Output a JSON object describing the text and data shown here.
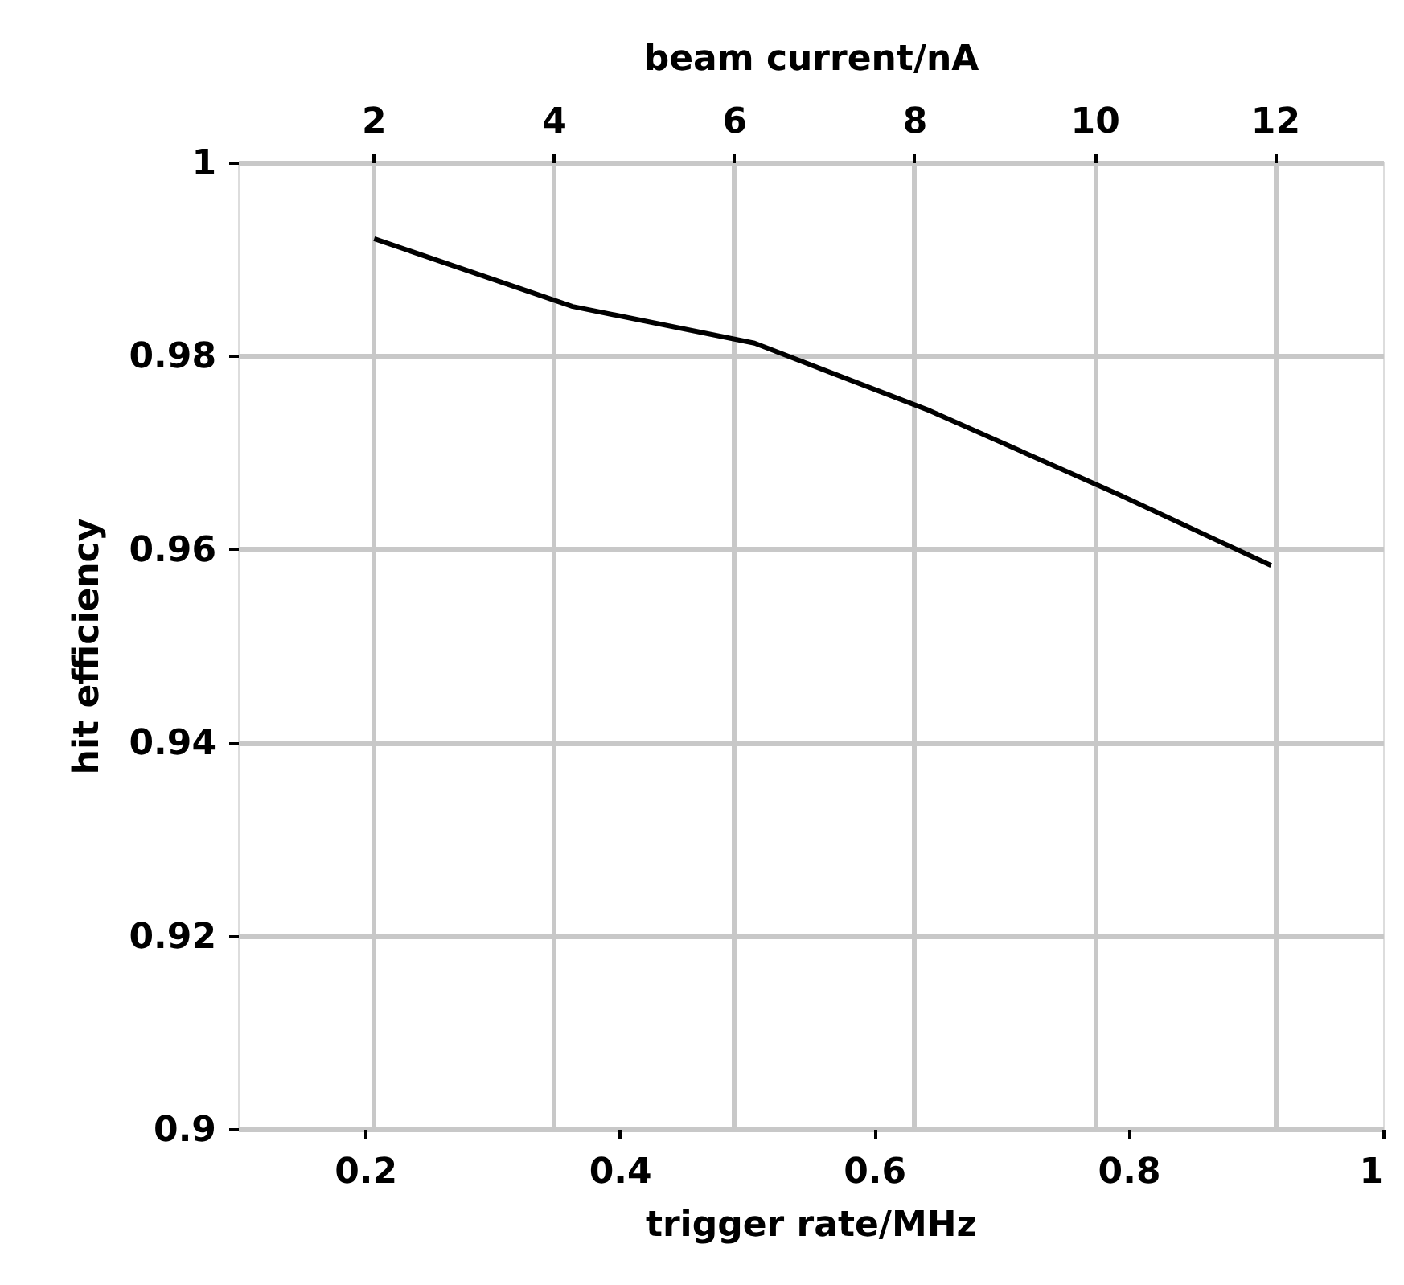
{
  "chart_data": {
    "type": "line",
    "xlabel": "trigger rate/MHz",
    "ylabel": "hit efficiency",
    "x2label": "beam current/nA",
    "x": [
      0.207,
      0.363,
      0.506,
      0.644,
      0.793,
      0.912
    ],
    "series": [
      {
        "color": "#000000",
        "values": [
          0.9921,
          0.9851,
          0.9813,
          0.9743,
          0.9656,
          0.9583
        ]
      }
    ],
    "xlim": [
      0.1,
      1
    ],
    "xticks": [
      0.2,
      0.4,
      0.6,
      0.8,
      1
    ],
    "ylim": [
      0.9,
      1
    ],
    "yticks": [
      0.9,
      0.92,
      0.94,
      0.96,
      0.98,
      1
    ],
    "x2lim": [
      0.5,
      13.2
    ],
    "x2ticks": [
      2,
      4,
      6,
      8,
      10,
      12
    ],
    "grid": true,
    "marker": "none",
    "line_style": "solid",
    "legend": false
  }
}
